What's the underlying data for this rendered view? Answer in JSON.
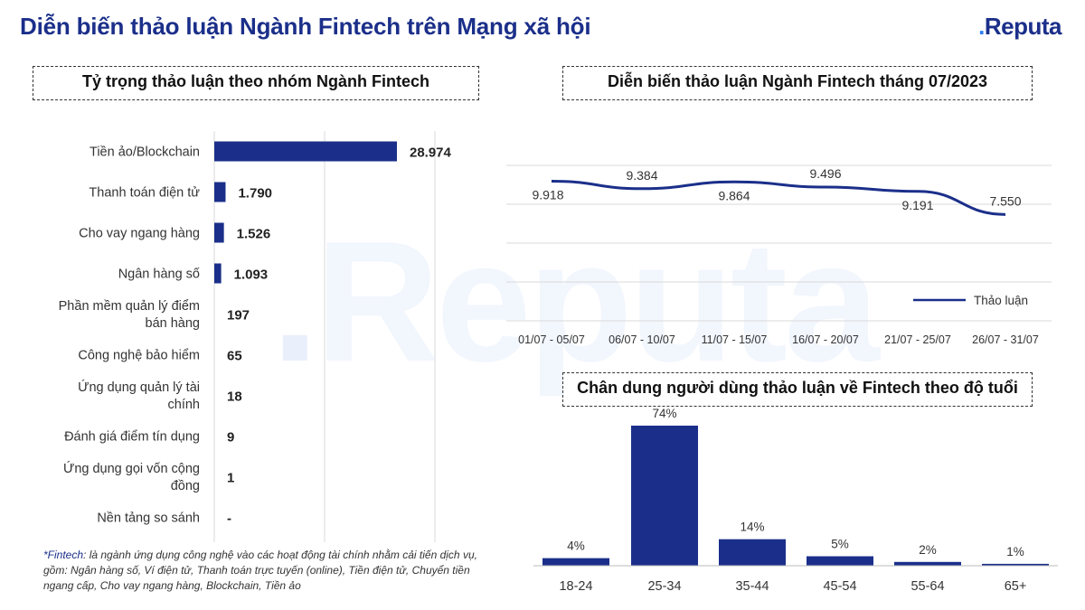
{
  "header": {
    "title": "Diễn biến thảo luận Ngành Fintech trên Mạng xã hội",
    "logo_prefix": ".",
    "logo_text": "Reputa"
  },
  "watermark": ".Reputa",
  "footnote": {
    "term": "*Fintech",
    "text": ": là ngành ứng dụng công nghệ vào các hoạt động tài chính nhằm cải tiến dịch vụ, gồm: Ngân hàng số, Ví điện tử, Thanh toán trực tuyến (online), Tiền điện tử, Chuyển tiền ngang cấp, Cho vay ngang hàng, Blockchain, Tiền ảo"
  },
  "colors": {
    "primary": "#1b2f8a",
    "accent": "#2f7df6",
    "grid": "#d9d9d9"
  },
  "chart_data": [
    {
      "type": "bar",
      "orientation": "horizontal",
      "title": "Tỷ trọng thảo luận theo nhóm Ngành Fintech",
      "categories": [
        "Tiền ảo/Blockchain",
        "Thanh toán điện tử",
        "Cho vay ngang hàng",
        "Ngân hàng số",
        "Phần mềm quản lý điểm bán hàng",
        "Công nghệ bảo hiểm",
        "Ứng dụng quản lý tài chính",
        "Đánh giá điểm tín dụng",
        "Ứng dụng gọi vốn cộng đồng",
        "Nền tảng so sánh"
      ],
      "values": [
        28974,
        1790,
        1526,
        1093,
        197,
        65,
        18,
        9,
        1,
        0
      ],
      "value_labels": [
        "28.974",
        "1.790",
        "1.526",
        "1.093",
        "197",
        "65",
        "18",
        "9",
        "1",
        "-"
      ],
      "xlim": [
        0,
        35000
      ],
      "grid": true
    },
    {
      "type": "line",
      "title": "Diễn biến thảo luận Ngành Fintech tháng 07/2023",
      "x": [
        "01/07 - 05/07",
        "06/07 - 10/07",
        "11/07 - 15/07",
        "16/07 - 20/07",
        "21/07 - 25/07",
        "26/07 - 31/07"
      ],
      "series": [
        {
          "name": "Thảo luận",
          "values": [
            9918,
            9384,
            9864,
            9496,
            9191,
            7550
          ]
        }
      ],
      "value_labels": [
        "9.918",
        "9.384",
        "9.864",
        "9.496",
        "9.191",
        "7.550"
      ],
      "ylim": [
        0,
        12000
      ],
      "grid": true,
      "legend": "right"
    },
    {
      "type": "bar",
      "title": "Chân dung người dùng thảo luận về Fintech theo độ tuổi",
      "categories": [
        "18-24",
        "25-34",
        "35-44",
        "45-54",
        "55-64",
        "65+"
      ],
      "values": [
        4,
        74,
        14,
        5,
        2,
        1
      ],
      "value_labels": [
        "4%",
        "74%",
        "14%",
        "5%",
        "2%",
        "1%"
      ],
      "ylim": [
        0,
        74
      ],
      "grid": false
    }
  ]
}
